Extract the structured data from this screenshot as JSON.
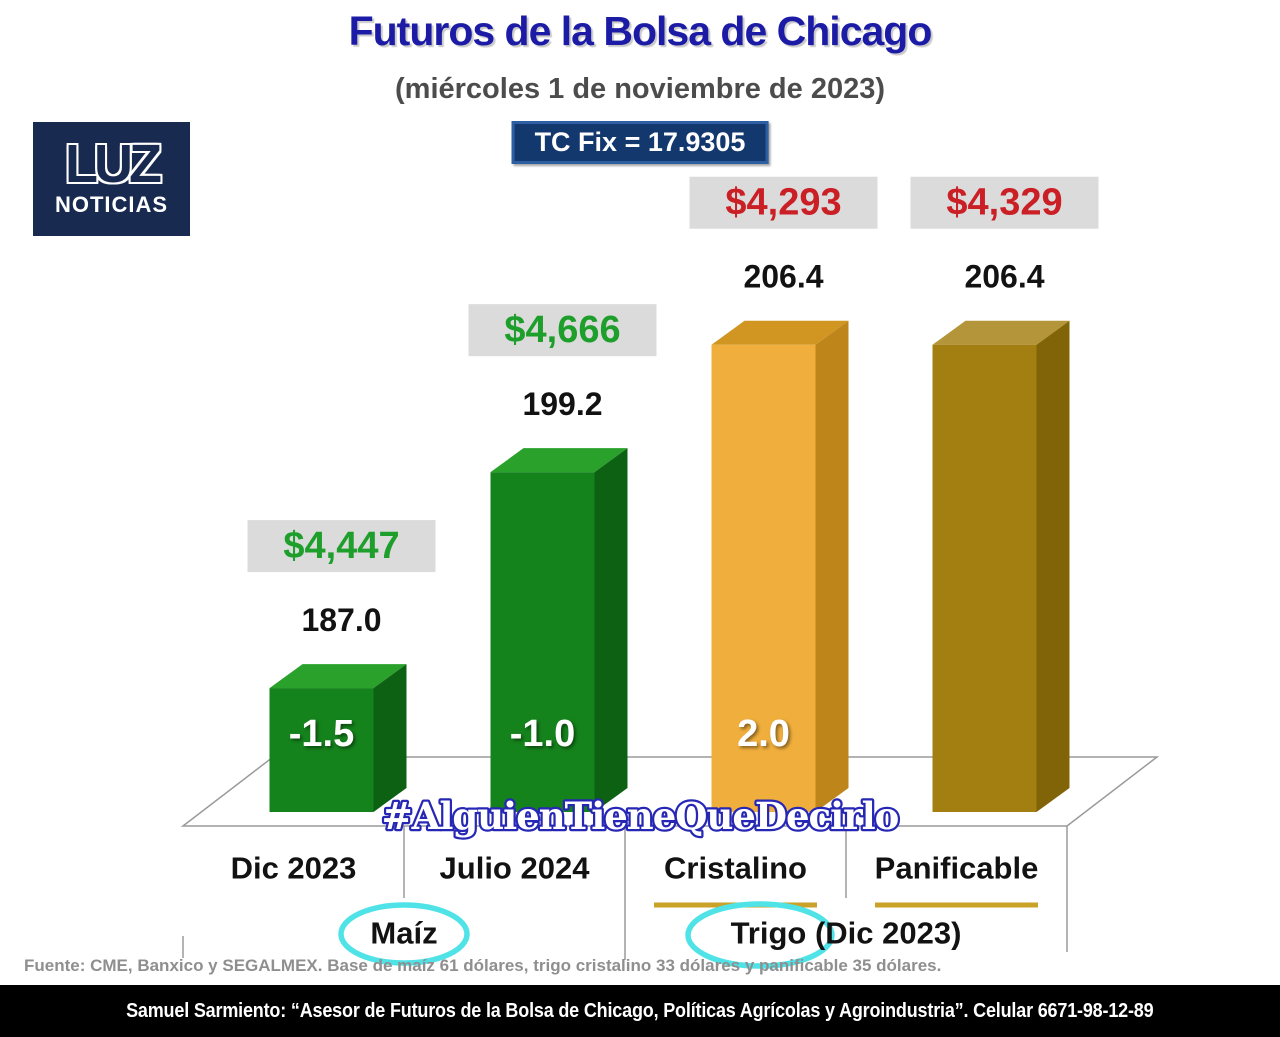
{
  "header": {
    "title": "Futuros de la Bolsa de Chicago",
    "subtitle": "(miércoles 1 de noviembre de 2023)",
    "tc_fix_label": "TC Fix = 17.9305"
  },
  "logo": {
    "line1": "LUZ",
    "line2": "NOTICIAS"
  },
  "watermark": "#AlguienTieneQueDecirlo",
  "footer": {
    "source": "Fuente: CME, Banxico y SEGALMEX. Base de maíz 61 dólares, trigo cristalino 33 dólares y panificable 35 dólares.",
    "banner": "Samuel Sarmiento: “Asesor de Futuros de la Bolsa de Chicago, Políticas Agrícolas y Agroindustria”. Celular 6671-98-12-89"
  },
  "chart_data": {
    "type": "bar",
    "title": "Futuros de la Bolsa de Chicago",
    "date": "miércoles 1 de noviembre de 2023",
    "tc_fix": 17.9305,
    "categories": [
      "Dic 2023",
      "Julio 2024",
      "Cristalino",
      "Panificable"
    ],
    "groups": [
      {
        "label_full": "Maíz",
        "circled_word": "Maíz",
        "category_indexes": [
          0,
          1
        ]
      },
      {
        "label_full": "Trigo (Dic 2023)",
        "circled_word": "Trigo",
        "category_indexes": [
          2,
          3
        ]
      }
    ],
    "ylim": [
      180,
      215
    ],
    "grid": false,
    "legend": false,
    "bars": [
      {
        "category": "Dic 2023",
        "price_label": "$4,447",
        "price_mxn": 4447,
        "price_color": "green",
        "value": 187.0,
        "value_label": "187.0",
        "change": -1.5,
        "change_label": "-1.5",
        "color": "green",
        "underlined": false
      },
      {
        "category": "Julio 2024",
        "price_label": "$4,666",
        "price_mxn": 4666,
        "price_color": "green",
        "value": 199.2,
        "value_label": "199.2",
        "change": -1.0,
        "change_label": "-1.0",
        "color": "green",
        "underlined": false
      },
      {
        "category": "Cristalino",
        "price_label": "$4,293",
        "price_mxn": 4293,
        "price_color": "red",
        "value": 206.4,
        "value_label": "206.4",
        "change": 2.0,
        "change_label": "2.0",
        "color": "gold",
        "underlined": true
      },
      {
        "category": "Panificable",
        "price_label": "$4,329",
        "price_mxn": 4329,
        "price_color": "red",
        "value": 206.4,
        "value_label": "206.4",
        "change": null,
        "change_label": null,
        "color": "dark_gold",
        "underlined": true
      }
    ]
  },
  "colors": {
    "title_blue": "#1B1BA6",
    "price_green": "#1E9E2B",
    "price_red": "#CB1F26",
    "label_bg": "#DBDBDB",
    "green_front": "#15831C",
    "green_top": "#2AA12B",
    "green_side": "#0C6113",
    "gold_front": "#F0AE3C",
    "gold_top": "#D09621",
    "gold_side": "#BE861A",
    "dark_gold_front": "#A37E10",
    "dark_gold_top": "#B5953A",
    "dark_gold_side": "#826408",
    "tc_fix_bg": "#12386E",
    "tc_fix_border": "#2E5FA3",
    "logo_bg": "#182A50",
    "cyan_circle": "#4FE3E8",
    "underline_gold": "#C9A227",
    "axis_gray": "#9A9A9A",
    "watermark_fill": "#FFFFFF",
    "watermark_stroke": "#2727B5",
    "banner_bg": "#000000"
  }
}
